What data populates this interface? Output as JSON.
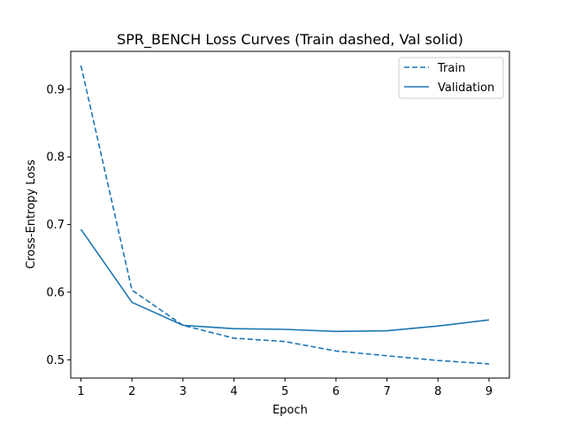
{
  "chart_data": {
    "type": "line",
    "title": "SPR_BENCH Loss Curves (Train dashed, Val solid)",
    "xlabel": "Epoch",
    "ylabel": "Cross-Entropy Loss",
    "x": [
      1,
      2,
      3,
      4,
      5,
      6,
      7,
      8,
      9
    ],
    "xticks": [
      "1",
      "2",
      "3",
      "4",
      "5",
      "6",
      "7",
      "8",
      "9"
    ],
    "yticks": [
      "0.5",
      "0.6",
      "0.7",
      "0.8",
      "0.9"
    ],
    "yticks_values": [
      0.5,
      0.6,
      0.7,
      0.8,
      0.9
    ],
    "xlim": [
      0.8,
      9.4
    ],
    "ylim": [
      0.473,
      0.956
    ],
    "grid": false,
    "legend_position": "top-right",
    "series": [
      {
        "name": "Train",
        "style": "dashed",
        "color": "#1f77b4",
        "values": [
          0.935,
          0.603,
          0.551,
          0.532,
          0.527,
          0.513,
          0.506,
          0.499,
          0.494
        ]
      },
      {
        "name": "Validation",
        "style": "solid",
        "color": "#1f77b4",
        "values": [
          0.693,
          0.585,
          0.551,
          0.546,
          0.545,
          0.542,
          0.543,
          0.55,
          0.559
        ]
      }
    ]
  }
}
